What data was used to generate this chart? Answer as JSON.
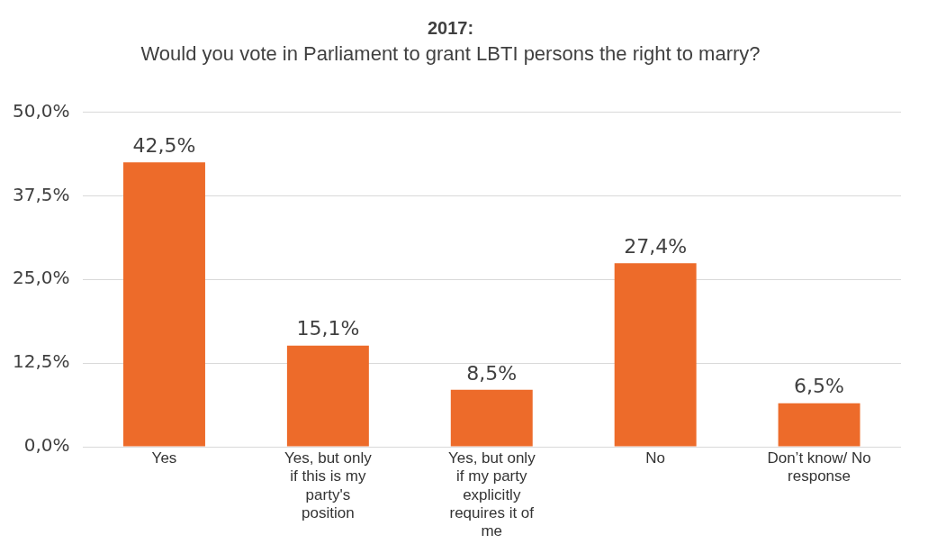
{
  "chart_data": {
    "type": "bar",
    "title": "2017:",
    "subtitle": "Would you vote in Parliament to grant LBTI persons the right to marry?",
    "categories": [
      "Yes",
      "Yes, but only if this is my party's position",
      "Yes, but only if my party explicitly requires it of me",
      "No",
      "Don’t know/ No response"
    ],
    "values": [
      42.5,
      15.1,
      8.5,
      27.4,
      6.5
    ],
    "value_labels": [
      "42,5%",
      "15,1%",
      "8,5%",
      "27,4%",
      "6,5%"
    ],
    "color": "#ed6b2a",
    "ylim": [
      0,
      50
    ],
    "yticks": [
      {
        "value": 0,
        "label": "0,0%"
      },
      {
        "value": 12.5,
        "label": "12,5%"
      },
      {
        "value": 25,
        "label": "25,0%"
      },
      {
        "value": 37.5,
        "label": "37,5%"
      },
      {
        "value": 50,
        "label": "50,0%"
      }
    ],
    "grid": "y"
  }
}
